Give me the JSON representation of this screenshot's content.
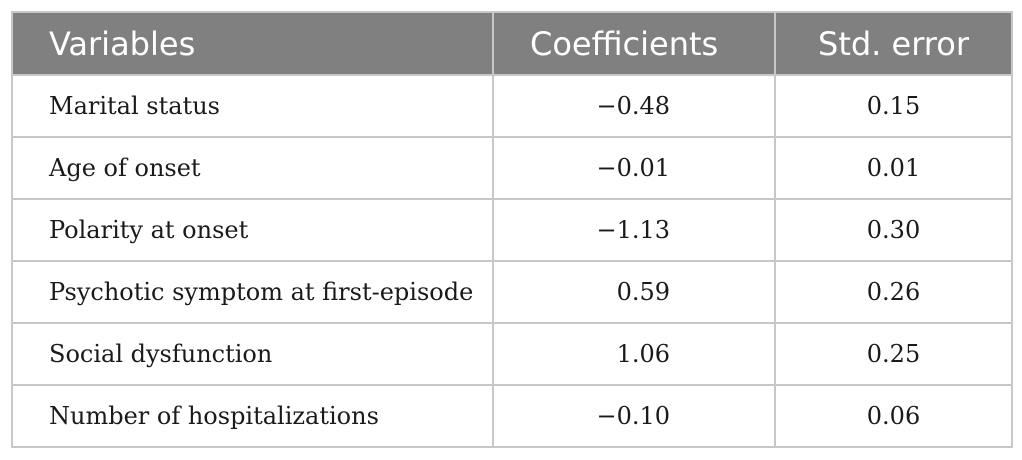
{
  "table": {
    "headers": [
      "Variables",
      "Coefficients",
      "Std. error"
    ],
    "rows": [
      {
        "variable": "Marital status",
        "coefficient": "−0.48",
        "std_error": "0.15"
      },
      {
        "variable": "Age of onset",
        "coefficient": "−0.01",
        "std_error": "0.01"
      },
      {
        "variable": "Polarity at onset",
        "coefficient": "−1.13",
        "std_error": "0.30"
      },
      {
        "variable": "Psychotic symptom at first-episode",
        "coefficient": "0.59",
        "std_error": "0.26"
      },
      {
        "variable": "Social dysfunction",
        "coefficient": "1.06",
        "std_error": "0.25"
      },
      {
        "variable": "Number of hospitalizations",
        "coefficient": "−0.10",
        "std_error": "0.06"
      }
    ]
  }
}
